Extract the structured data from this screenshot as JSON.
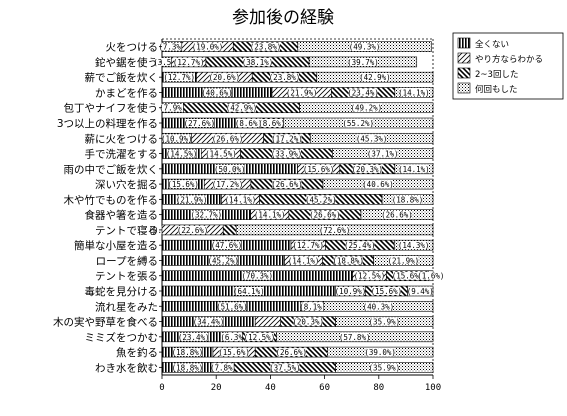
{
  "chart_data": {
    "type": "bar",
    "orientation": "horizontal",
    "stacked": true,
    "title": "参加後の経験",
    "xlabel": "",
    "ylabel": "",
    "xlim": [
      0,
      100
    ],
    "xticks": [
      0,
      20,
      40,
      60,
      80,
      100
    ],
    "legend_position": "top-right",
    "categories": [
      "火をつける",
      "鉈や鋸を使う",
      "薪でご飯を炊く",
      "かまどを作る",
      "包丁やナイフを使う",
      "3つ以上の料理を作る",
      "薪に火をつける",
      "手で洗濯をする",
      "雨の中でご飯を炊く",
      "深い穴を掘る",
      "木や竹でものを作る",
      "食器や箸を造る",
      "テントで寝る",
      "簡単な小屋を造る",
      "ロープを縛る",
      "テントを張る",
      "毒蛇を見分ける",
      "流れ星をみた",
      "木の実や野草を食べる",
      "ミミズをつかむ",
      "魚を釣る",
      "わき水を飲む"
    ],
    "series": [
      {
        "name": "全くない",
        "values": [
          7.3,
          3.5,
          12.7,
          40.6,
          7.9,
          27.6,
          10.9,
          14.5,
          50.0,
          15.6,
          21.9,
          32.7,
          0.0,
          47.6,
          45.2,
          70.3,
          64.1,
          51.6,
          34.4,
          23.4,
          18.8,
          18.8
        ],
        "labels": [
          "7.3%",
          "3.5%",
          "12.7%",
          "40.6%",
          "7.9%",
          "27.6%",
          "10.9%",
          "14.5%",
          "50.0%",
          "15.6%",
          "21.9%",
          "32.7%",
          "0.0%",
          "47.6%",
          "45.2%",
          "70.3%",
          "64.1%",
          "51.6%",
          "34.4%",
          "23.4%",
          "18.8%",
          "18.8%"
        ]
      },
      {
        "name": "やり方ならわかる",
        "values": [
          19.0,
          12.7,
          20.6,
          21.9,
          0.0,
          8.6,
          26.6,
          14.5,
          15.6,
          17.2,
          14.1,
          14.1,
          22.6,
          12.7,
          14.1,
          12.5,
          10.9,
          8.1,
          9.4,
          6.3,
          15.6,
          7.8
        ],
        "labels": [
          "19.0%",
          "12.7%",
          "20.6%",
          "21.9%",
          "",
          "8.6%",
          "26.6%",
          "14.5%",
          "15.6%",
          "17.2%",
          "14.1%",
          "14.1%",
          "22.6%",
          "12.7%",
          "14.1%",
          "12.5%",
          "10.9%",
          "8.1%",
          "",
          "6.3%",
          "15.6%",
          "7.8%"
        ]
      },
      {
        "name": "2~3回した",
        "values": [
          23.8,
          38.1,
          23.8,
          23.4,
          42.9,
          8.6,
          17.2,
          33.9,
          20.3,
          26.6,
          45.2,
          26.6,
          4.8,
          25.4,
          18.8,
          15.6,
          15.6,
          0.0,
          20.3,
          12.5,
          26.6,
          37.5
        ],
        "labels": [
          "23.8%",
          "38.1%",
          "23.8%",
          "23.4%",
          "42.9%",
          "8.6%",
          "17.2%",
          "33.9%",
          "20.3%",
          "26.6%",
          "45.2%",
          "26.6%",
          "",
          "25.4%",
          "18.8%",
          "15.6%",
          "15.6%",
          "",
          "20.3%",
          "12.5%",
          "26.6%",
          "37.5%"
        ]
      },
      {
        "name": "何回もした",
        "values": [
          49.3,
          39.7,
          42.9,
          14.1,
          49.2,
          55.2,
          45.3,
          37.1,
          14.1,
          40.6,
          18.8,
          26.6,
          72.6,
          14.3,
          21.9,
          1.6,
          9.4,
          40.3,
          35.9,
          57.8,
          39.0,
          35.9
        ],
        "labels": [
          "49.3%",
          "39.7%",
          "42.9%",
          "14.1%",
          "49.2%",
          "55.2%",
          "45.3%",
          "37.1%",
          "14.1%",
          "40.6%",
          "18.8%",
          "26.6%",
          "72.6%",
          "14.3%",
          "21.9%",
          "1.6%",
          "9.4%",
          "40.3%",
          "35.9%",
          "57.8%",
          "39.0%",
          "35.9%"
        ]
      }
    ]
  }
}
